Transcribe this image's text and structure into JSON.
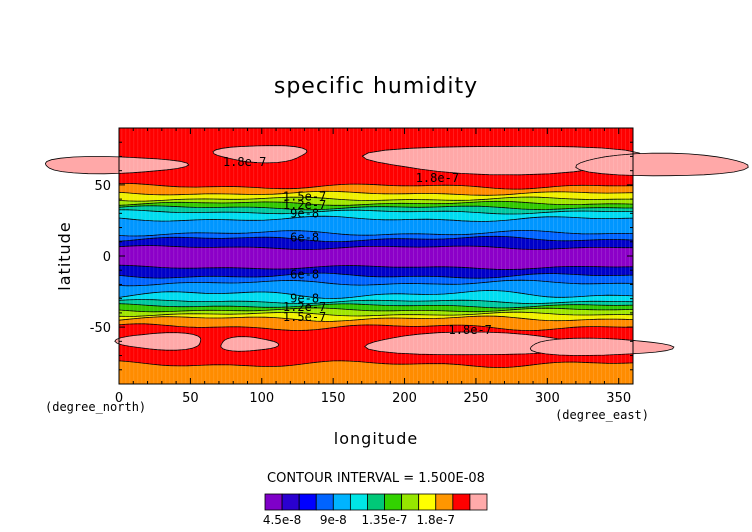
{
  "chart_data": {
    "type": "heatmap",
    "title": "specific humidity",
    "xlabel": "longitude",
    "ylabel": "latitude",
    "x_units": "(degree_east)",
    "y_units": "(degree_north)",
    "xlim": [
      0,
      360
    ],
    "ylim": [
      -90,
      90
    ],
    "x_ticks": [
      0,
      50,
      100,
      150,
      200,
      250,
      300,
      350
    ],
    "y_ticks": [
      -50,
      0,
      50
    ],
    "grid": true,
    "contour_interval_text": "CONTOUR INTERVAL = 1.500E-08",
    "contour_levels": [
      4.5e-08,
      6e-08,
      7.5e-08,
      9e-08,
      1.05e-07,
      1.2e-07,
      1.35e-07,
      1.5e-07,
      1.65e-07,
      1.8e-07
    ],
    "colorbar": {
      "tick_labels": [
        "4.5e-8",
        "9e-8",
        "1.35e-7",
        "1.8e-7"
      ],
      "colors": [
        "#7f00c8",
        "#2a00d0",
        "#0000ff",
        "#0064ff",
        "#00b4ff",
        "#00e6e6",
        "#00c878",
        "#32d200",
        "#96e600",
        "#ffff00",
        "#ff9600",
        "#ff0000",
        "#ffaaaa"
      ]
    },
    "band_colors": {
      "deep_purple": "#8c00c8",
      "navy": "#0000c8",
      "blue": "#0064ff",
      "medium_blue": "#0096ff",
      "cyan": "#00dcf0",
      "teal": "#00c8a0",
      "green": "#32c800",
      "yellow_green": "#a0e600",
      "yellow": "#f0f000",
      "orange": "#ff8c00",
      "red": "#ff0000",
      "pink": "#ffa8a8"
    },
    "contour_labels": [
      {
        "text": "1.8e-7",
        "lon": 88,
        "lat": 66
      },
      {
        "text": "1.8e-7",
        "lon": 223,
        "lat": 55
      },
      {
        "text": "1.5e-7",
        "lon": 130,
        "lat": 42
      },
      {
        "text": "1.2e-7",
        "lon": 130,
        "lat": 36
      },
      {
        "text": "9e-8",
        "lon": 130,
        "lat": 30
      },
      {
        "text": "6e-8",
        "lon": 130,
        "lat": 13
      },
      {
        "text": "6e-8",
        "lon": 130,
        "lat": -13
      },
      {
        "text": "9e-8",
        "lon": 130,
        "lat": -30
      },
      {
        "text": "1.2e-7",
        "lon": 130,
        "lat": -36
      },
      {
        "text": "1.5e-7",
        "lon": 130,
        "lat": -43
      },
      {
        "text": "1.8e-7",
        "lon": 246,
        "lat": -52
      }
    ]
  }
}
